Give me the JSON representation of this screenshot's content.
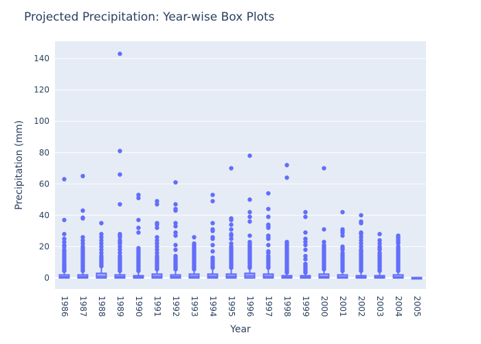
{
  "chart_data": {
    "type": "box",
    "title": "Projected Precipitation: Year-wise Box Plots",
    "xlabel": "Year",
    "ylabel": "Precipitation (mm)",
    "ylim": [
      -7,
      151
    ],
    "yticks": [
      0,
      20,
      40,
      60,
      80,
      100,
      120,
      140
    ],
    "grid": true,
    "colors": {
      "plot_bg": "#e5ecf6",
      "marker": "#636efa",
      "grid": "#ffffff",
      "text": "#2a3f5f"
    },
    "categories": [
      "1986",
      "1987",
      "1988",
      "1989",
      "1990",
      "1991",
      "1992",
      "1993",
      "1994",
      "1995",
      "1996",
      "1997",
      "1998",
      "1999",
      "2000",
      "2001",
      "2002",
      "2003",
      "2004",
      "2005"
    ],
    "boxes": [
      {
        "year": "1986",
        "q1": 0,
        "median": 0.8,
        "q3": 2,
        "min": 0,
        "max": 4,
        "outliers": [
          4.5,
          5,
          5.5,
          6,
          6.5,
          7,
          7.5,
          8,
          8.5,
          9,
          10,
          11,
          12,
          13,
          14,
          15,
          16,
          17,
          18,
          20,
          21,
          23,
          25,
          28,
          37,
          63
        ]
      },
      {
        "year": "1987",
        "q1": 0,
        "median": 0.8,
        "q3": 2,
        "min": 0,
        "max": 4,
        "outliers": [
          4.5,
          5,
          6,
          7,
          8,
          9,
          10,
          11,
          12,
          13,
          14,
          15,
          16,
          17,
          18,
          19,
          20,
          22,
          24,
          26,
          38,
          38.5,
          43,
          65
        ]
      },
      {
        "year": "1988",
        "q1": 0,
        "median": 1,
        "q3": 3,
        "min": 0,
        "max": 7,
        "outliers": [
          7.5,
          8,
          9,
          10,
          11,
          12,
          13,
          14,
          16,
          18,
          20,
          22,
          24,
          26,
          28,
          35
        ]
      },
      {
        "year": "1989",
        "q1": 0,
        "median": 0.8,
        "q3": 2,
        "min": 0,
        "max": 4,
        "outliers": [
          4.5,
          5,
          6,
          7,
          8,
          9,
          10,
          11,
          12,
          13,
          14,
          16,
          18,
          20,
          22,
          23,
          24,
          26,
          27,
          28,
          47,
          66,
          81,
          143
        ]
      },
      {
        "year": "1990",
        "q1": 0,
        "median": 0.6,
        "q3": 1.5,
        "min": 0,
        "max": 4,
        "outliers": [
          4.5,
          5,
          6,
          7,
          8,
          9,
          10,
          11,
          12,
          13,
          14,
          15,
          16,
          17,
          18,
          19,
          29,
          32,
          37,
          51,
          53
        ]
      },
      {
        "year": "1991",
        "q1": 0,
        "median": 1,
        "q3": 2.5,
        "min": 0,
        "max": 5,
        "outliers": [
          5.5,
          6,
          7,
          8,
          9,
          10,
          11,
          12,
          13,
          14,
          16,
          18,
          20,
          22,
          24,
          26,
          32,
          34,
          35,
          47,
          49
        ]
      },
      {
        "year": "1992",
        "q1": 0,
        "median": 0.8,
        "q3": 2,
        "min": 0,
        "max": 5,
        "outliers": [
          5.5,
          6,
          7,
          8,
          9,
          10,
          11,
          12,
          13,
          14,
          18,
          21,
          27,
          29,
          33,
          35,
          43,
          44,
          47,
          61
        ]
      },
      {
        "year": "1993",
        "q1": 0,
        "median": 1,
        "q3": 2.5,
        "min": 0,
        "max": 5,
        "outliers": [
          5.5,
          6,
          7,
          8,
          9,
          10,
          11,
          12,
          13,
          14,
          15,
          16,
          17,
          18,
          19,
          20,
          21,
          22,
          26
        ]
      },
      {
        "year": "1994",
        "q1": 0,
        "median": 1,
        "q3": 2.5,
        "min": 0,
        "max": 6,
        "outliers": [
          6.5,
          7,
          8,
          9,
          10,
          11,
          12,
          13,
          17,
          21,
          25,
          26,
          30,
          31,
          35,
          49,
          53
        ]
      },
      {
        "year": "1995",
        "q1": 0,
        "median": 1,
        "q3": 2.5,
        "min": 0,
        "max": 6,
        "outliers": [
          6.5,
          7,
          8,
          9,
          10,
          11,
          12,
          13,
          14,
          15,
          16,
          17,
          18,
          19,
          20,
          22,
          25,
          27,
          28,
          31,
          34,
          37,
          38,
          70
        ]
      },
      {
        "year": "1996",
        "q1": 0,
        "median": 1.2,
        "q3": 3,
        "min": 0,
        "max": 6,
        "outliers": [
          6.5,
          7,
          8,
          9,
          10,
          11,
          12,
          13,
          14,
          15,
          16,
          17,
          18,
          19,
          20,
          21,
          22,
          23,
          27,
          36,
          39,
          42,
          50,
          78
        ]
      },
      {
        "year": "1997",
        "q1": 0,
        "median": 1,
        "q3": 2.5,
        "min": 0,
        "max": 6,
        "outliers": [
          6.5,
          7,
          8,
          9,
          10,
          11,
          12,
          13,
          14,
          16,
          17,
          21,
          25,
          26,
          27,
          32,
          33,
          34,
          39,
          44,
          54
        ]
      },
      {
        "year": "1998",
        "q1": 0,
        "median": 0.6,
        "q3": 1.5,
        "min": 0,
        "max": 3,
        "outliers": [
          3.5,
          4,
          4.5,
          5,
          6,
          7,
          8,
          9,
          10,
          11,
          12,
          13,
          14,
          15,
          16,
          17,
          18,
          19,
          20,
          21,
          22,
          23,
          64,
          72
        ]
      },
      {
        "year": "1999",
        "q1": 0,
        "median": 0.6,
        "q3": 1.5,
        "min": 0,
        "max": 3,
        "outliers": [
          3.5,
          4,
          5,
          6,
          7,
          8,
          9,
          12,
          14,
          18,
          21,
          23,
          25,
          29,
          39,
          42
        ]
      },
      {
        "year": "2000",
        "q1": 0,
        "median": 0.8,
        "q3": 2.5,
        "min": 0,
        "max": 5,
        "outliers": [
          5.5,
          6,
          7,
          8,
          9,
          10,
          11,
          12,
          13,
          14,
          15,
          16,
          17,
          18,
          19,
          20,
          21,
          23,
          31,
          70
        ]
      },
      {
        "year": "2001",
        "q1": 0,
        "median": 0.6,
        "q3": 2,
        "min": 0,
        "max": 4,
        "outliers": [
          4.5,
          5,
          6,
          7,
          8,
          9,
          10,
          11,
          12,
          13,
          14,
          15,
          16,
          18,
          19,
          20,
          27,
          29,
          30,
          31,
          42
        ]
      },
      {
        "year": "2002",
        "q1": 0,
        "median": 0.6,
        "q3": 1.5,
        "min": 0,
        "max": 4,
        "outliers": [
          4.5,
          5,
          6,
          7,
          8,
          9,
          10,
          11,
          12,
          13,
          14,
          15,
          16,
          17,
          18,
          20,
          22,
          24,
          26,
          28,
          29,
          35,
          36,
          40
        ]
      },
      {
        "year": "2003",
        "q1": 0,
        "median": 0.6,
        "q3": 1.5,
        "min": 0,
        "max": 4,
        "outliers": [
          4.5,
          5,
          6,
          7,
          8,
          9,
          10,
          11,
          12,
          13,
          14,
          15,
          16,
          18,
          19,
          20,
          22,
          24,
          28
        ]
      },
      {
        "year": "2004",
        "q1": 0,
        "median": 0.6,
        "q3": 2,
        "min": 0,
        "max": 4,
        "outliers": [
          4.5,
          5,
          6,
          7,
          8,
          9,
          10,
          11,
          12,
          13,
          14,
          15,
          16,
          17,
          18,
          19,
          20,
          22,
          23,
          24,
          25,
          26,
          27
        ]
      },
      {
        "year": "2005",
        "q1": 0,
        "median": 0,
        "q3": 0.3,
        "min": 0,
        "max": 0.5,
        "outliers": []
      }
    ]
  }
}
